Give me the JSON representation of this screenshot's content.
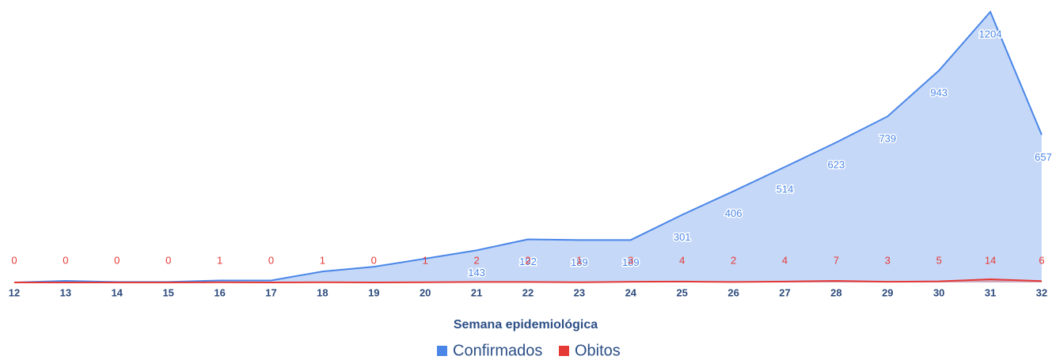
{
  "chart_data": {
    "type": "area",
    "x_label": "Semana epidemiológica",
    "categories": [
      "12",
      "13",
      "14",
      "15",
      "16",
      "17",
      "18",
      "19",
      "20",
      "21",
      "22",
      "23",
      "24",
      "25",
      "26",
      "27",
      "28",
      "29",
      "30",
      "31",
      "32"
    ],
    "series": [
      {
        "name": "Confirmados",
        "color": "#4a86e8",
        "values": [
          0,
          7,
          2,
          2,
          9,
          9,
          49,
          70,
          106,
          143,
          192,
          189,
          189,
          301,
          406,
          514,
          623,
          739,
          943,
          1204,
          657
        ],
        "value_labels": [
          null,
          null,
          null,
          null,
          null,
          null,
          null,
          null,
          null,
          "143",
          "192",
          "189",
          "189",
          "301",
          "406",
          "514",
          "623",
          "739",
          "943",
          "1204",
          "657"
        ]
      },
      {
        "name": "Obitos",
        "color": "#e53935",
        "values": [
          0,
          0,
          0,
          0,
          1,
          0,
          1,
          0,
          1,
          2,
          2,
          1,
          3,
          4,
          2,
          4,
          7,
          3,
          5,
          14,
          6
        ]
      }
    ],
    "ylim": [
      0,
      1204
    ],
    "legend": "bottom"
  }
}
